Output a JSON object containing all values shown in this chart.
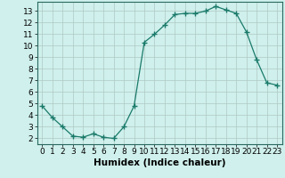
{
  "x": [
    0,
    1,
    2,
    3,
    4,
    5,
    6,
    7,
    8,
    9,
    10,
    11,
    12,
    13,
    14,
    15,
    16,
    17,
    18,
    19,
    20,
    21,
    22,
    23
  ],
  "y": [
    4.8,
    3.8,
    3.0,
    2.2,
    2.1,
    2.4,
    2.1,
    2.0,
    3.0,
    4.8,
    10.3,
    11.0,
    11.8,
    12.7,
    12.8,
    12.8,
    13.0,
    13.4,
    13.1,
    12.8,
    11.2,
    8.8,
    6.8,
    6.6
  ],
  "line_color": "#1a7a6a",
  "marker": "+",
  "marker_size": 4,
  "marker_lw": 1.0,
  "bg_color": "#cff0ec",
  "grid_color": "#b0c8c4",
  "xlabel": "Humidex (Indice chaleur)",
  "xlim": [
    -0.5,
    23.5
  ],
  "ylim": [
    1.5,
    13.8
  ],
  "xticks": [
    0,
    1,
    2,
    3,
    4,
    5,
    6,
    7,
    8,
    9,
    10,
    11,
    12,
    13,
    14,
    15,
    16,
    17,
    18,
    19,
    20,
    21,
    22,
    23
  ],
  "yticks": [
    2,
    3,
    4,
    5,
    6,
    7,
    8,
    9,
    10,
    11,
    12,
    13
  ],
  "tick_fontsize": 6.5,
  "xlabel_fontsize": 7.5
}
